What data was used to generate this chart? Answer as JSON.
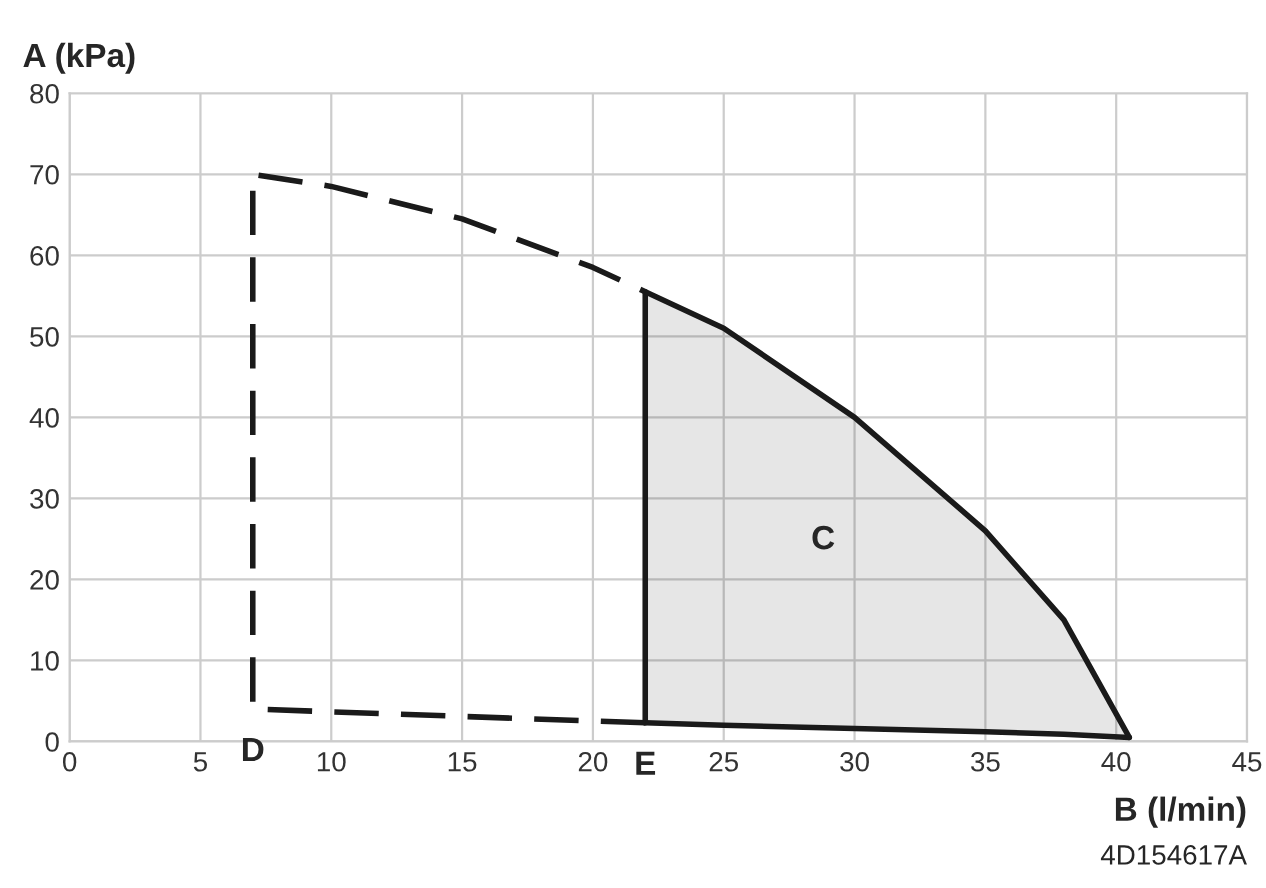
{
  "chart_data": {
    "type": "line",
    "xlabel": "B (l/min)",
    "ylabel": "A (kPa)",
    "xlim": [
      0,
      45
    ],
    "xticks": [
      0,
      5,
      10,
      15,
      20,
      25,
      30,
      35,
      40,
      45
    ],
    "ylim": [
      0,
      80
    ],
    "yticks": [
      0,
      10,
      20,
      30,
      40,
      50,
      60,
      70,
      80
    ],
    "grid": true,
    "legend": false,
    "series": [
      {
        "line_style": "solid",
        "color": "#1a1a1a",
        "x": [
          22,
          25,
          30,
          35,
          38,
          40.5
        ],
        "values": [
          55.5,
          51,
          40,
          26,
          15,
          0.5
        ],
        "lower": [
          2.3,
          2.0,
          1.6,
          1.2,
          0.9,
          0.5
        ],
        "upper": [
          55.5,
          51,
          40,
          26,
          15,
          0.5
        ]
      },
      {
        "line_style": "dashed",
        "color": "#1a1a1a",
        "x": [
          22,
          7,
          7,
          10,
          15,
          20,
          22
        ],
        "values": [
          2.3,
          4,
          70,
          68.5,
          64.5,
          58.5,
          55.5
        ]
      }
    ],
    "annotations": [
      "C",
      {
        "text": "D",
        "x": 7,
        "y": 4
      },
      {
        "text": "E",
        "x": 22,
        "y": 2.3
      },
      "4D154617A"
    ]
  }
}
